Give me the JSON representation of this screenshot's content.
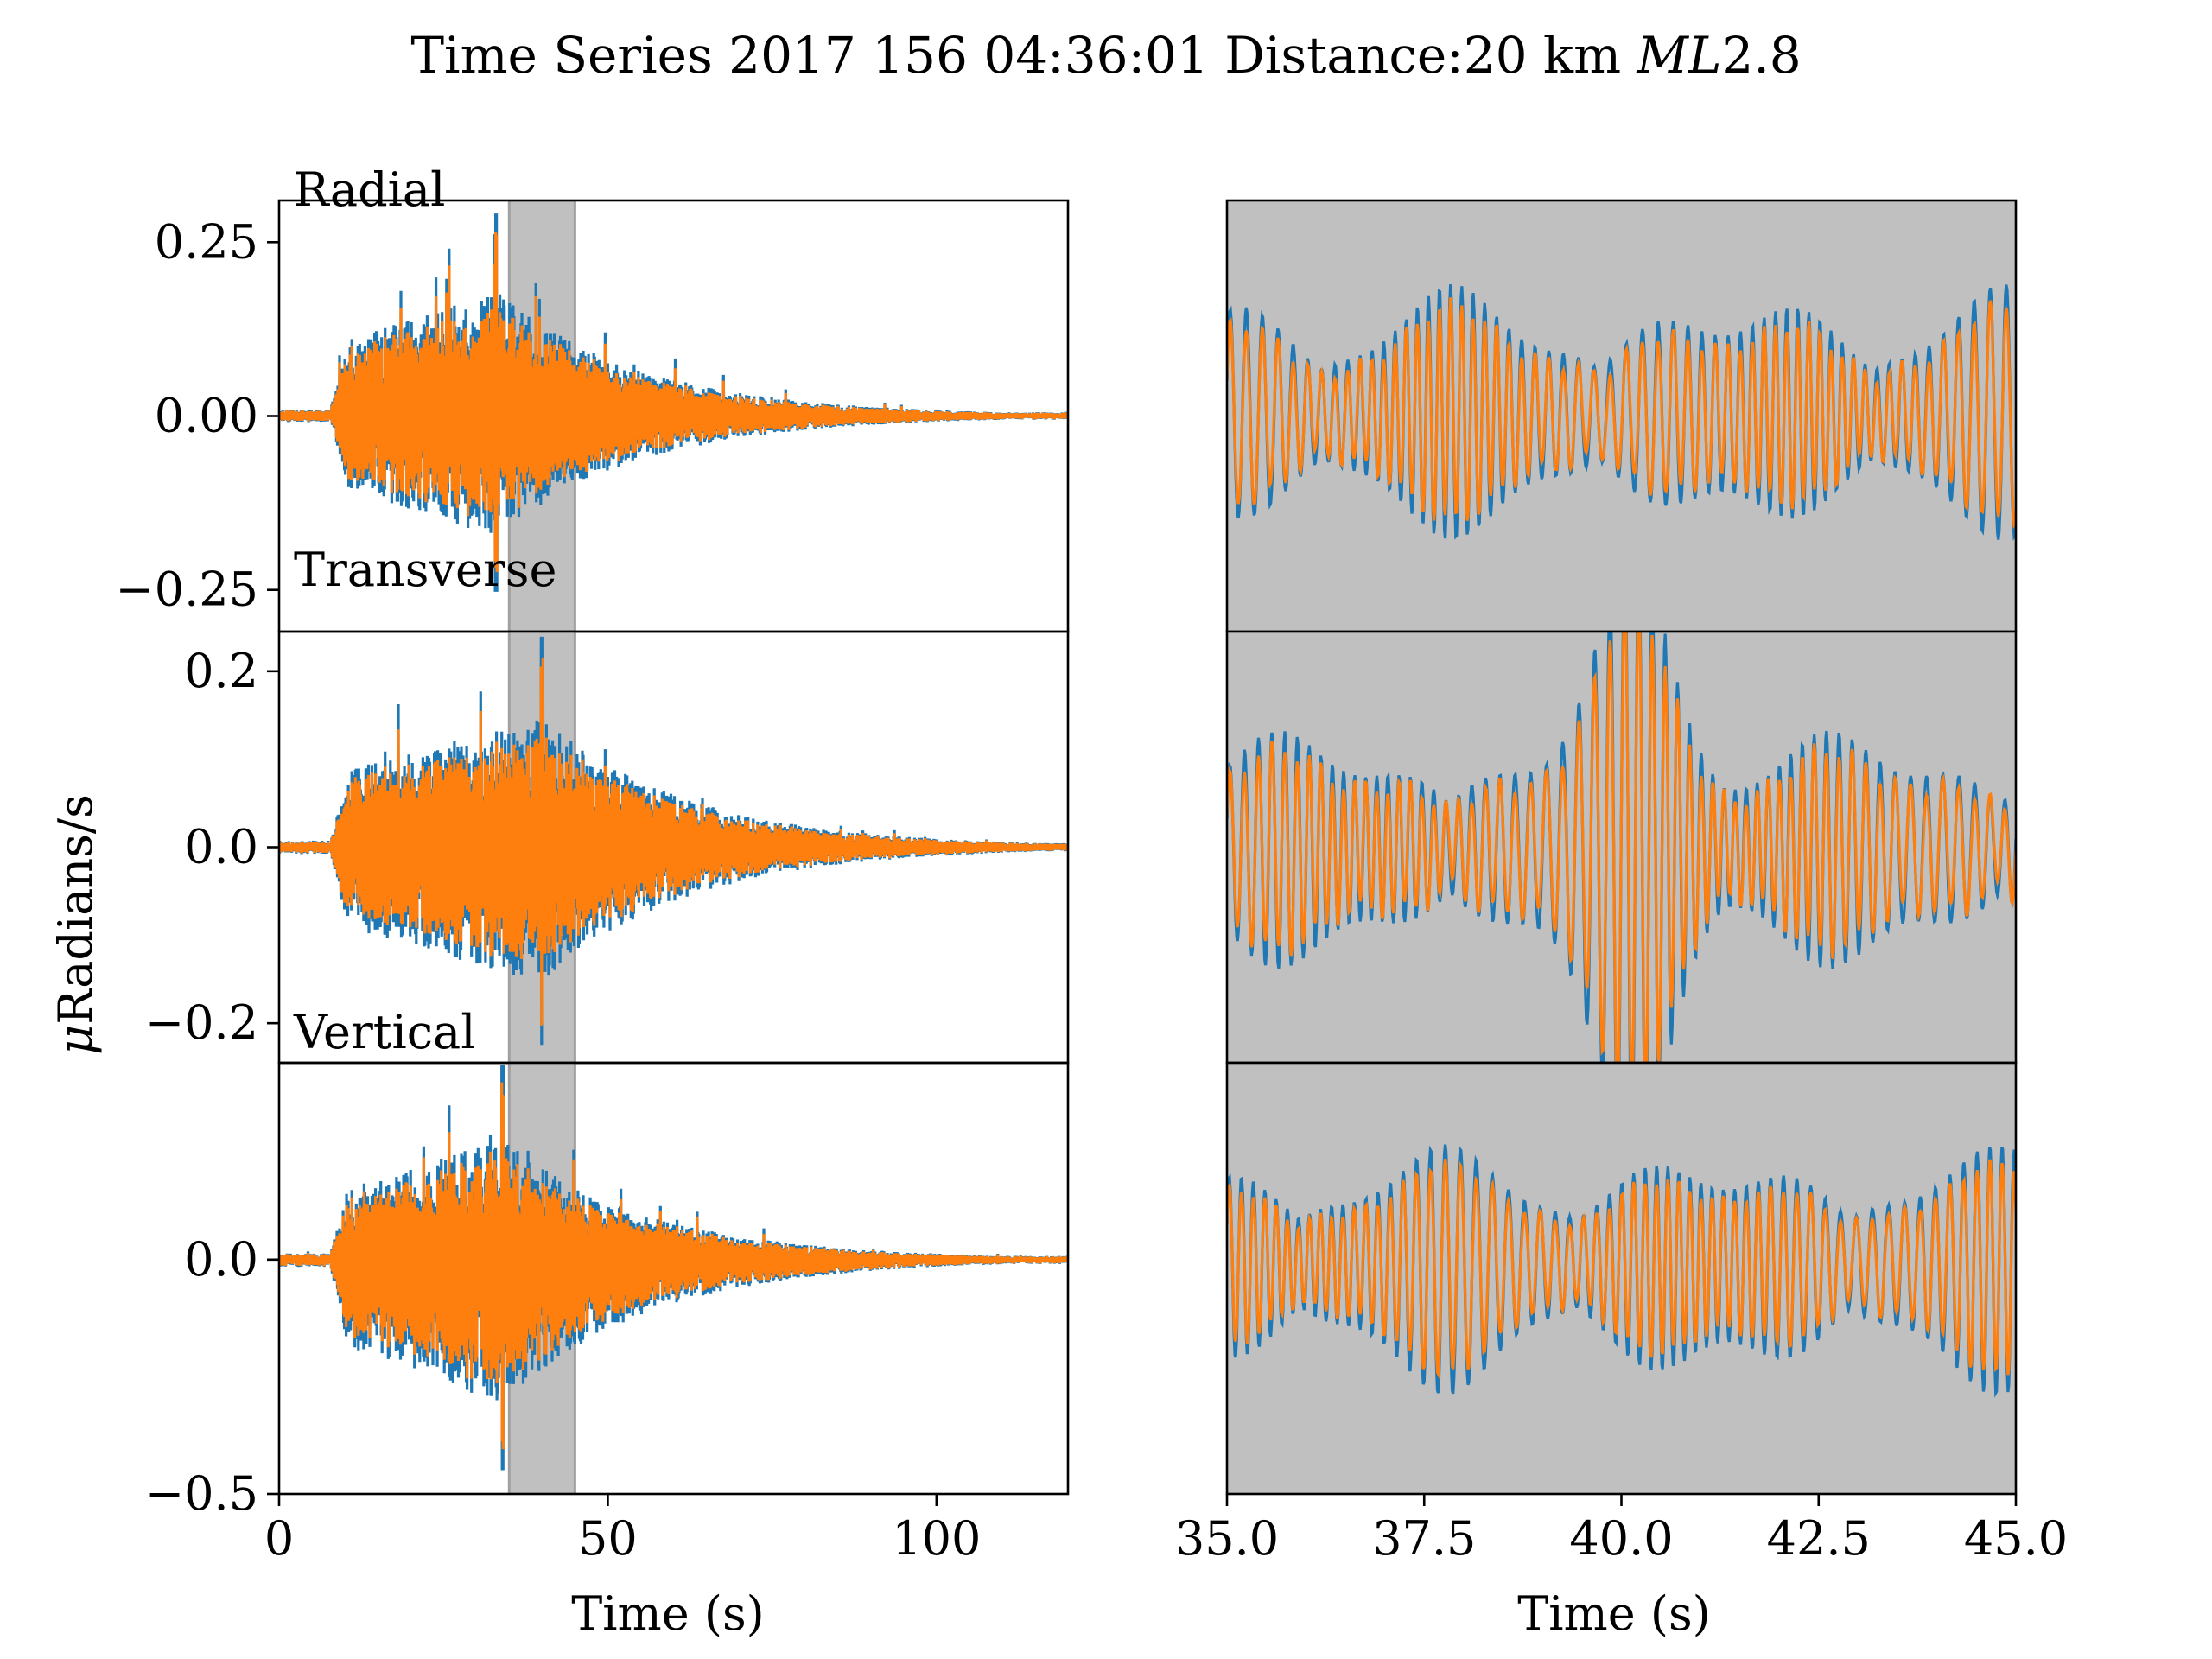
{
  "figure": {
    "title_prefix": "Time Series 2017 156 04:36:01 Distance:20 km ",
    "title_ml": "ML",
    "title_mag": "2.8",
    "ylabel_mu": "μ",
    "ylabel_rest": "Radians/s",
    "colors": {
      "series_1": "#1f77b4",
      "series_2": "#ff7f0e",
      "window_shade": "#c0c0c0"
    }
  },
  "chart_data": [
    {
      "type": "line",
      "panel": "full-radial",
      "annotations": [
        "Radial",
        "Transverse"
      ],
      "xlabel": "",
      "ylabel": "μRadians/s",
      "xlim": [
        0,
        120
      ],
      "ylim": [
        -0.31,
        0.31
      ],
      "yticks": [
        -0.25,
        0.0,
        0.25
      ],
      "ytick_labels": [
        "−0.25",
        "0.00",
        "0.25"
      ],
      "window": [
        35,
        45
      ],
      "envelope": {
        "onset": 7.5,
        "peak_time": 33,
        "peak_amp": 0.28,
        "min_amp": -0.27,
        "decay_end": 120
      },
      "series": [
        {
          "color": "#1f77b4"
        },
        {
          "color": "#ff7f0e"
        }
      ]
    },
    {
      "type": "line",
      "panel": "full-transverse",
      "annotations": [
        "Vertical"
      ],
      "xlim": [
        0,
        120
      ],
      "ylim": [
        -0.245,
        0.245
      ],
      "yticks": [
        -0.2,
        0.0,
        0.2
      ],
      "ytick_labels": [
        "−0.2",
        "0.0",
        "0.2"
      ],
      "window": [
        35,
        45
      ],
      "envelope": {
        "onset": 7.5,
        "peak_time": 40,
        "peak_amp": 0.23,
        "min_amp": -0.24,
        "decay_end": 120
      },
      "series": [
        {
          "color": "#1f77b4"
        },
        {
          "color": "#ff7f0e"
        }
      ]
    },
    {
      "type": "line",
      "panel": "full-vertical",
      "xlabel": "Time (s)",
      "xlim": [
        0,
        120
      ],
      "xticks": [
        0,
        50,
        100
      ],
      "xtick_labels": [
        "0",
        "50",
        "100"
      ],
      "ylim": [
        -0.5,
        0.42
      ],
      "yticks": [
        -0.5,
        0.0
      ],
      "ytick_labels": [
        "−0.5",
        "0.0"
      ],
      "window": [
        35,
        45
      ],
      "envelope": {
        "onset": 7.5,
        "peak_time": 34,
        "peak_amp": 0.4,
        "min_amp": -0.48,
        "decay_end": 120
      },
      "series": [
        {
          "color": "#1f77b4"
        },
        {
          "color": "#ff7f0e"
        }
      ]
    },
    {
      "type": "line",
      "panel": "zoom-radial",
      "xlim": [
        35,
        45
      ],
      "ylim": [
        -0.31,
        0.31
      ],
      "background": "#c0c0c0",
      "amp_range": [
        -0.16,
        0.17
      ],
      "series": [
        {
          "color": "#1f77b4"
        },
        {
          "color": "#ff7f0e"
        }
      ]
    },
    {
      "type": "line",
      "panel": "zoom-transverse",
      "xlim": [
        35,
        45
      ],
      "ylim": [
        -0.245,
        0.245
      ],
      "background": "#c0c0c0",
      "amp_range": [
        -0.24,
        0.23
      ],
      "series": [
        {
          "color": "#1f77b4"
        },
        {
          "color": "#ff7f0e"
        }
      ]
    },
    {
      "type": "line",
      "panel": "zoom-vertical",
      "xlim": [
        35,
        45
      ],
      "xticks": [
        35.0,
        37.5,
        40.0,
        42.5,
        45.0
      ],
      "xtick_labels": [
        "35.0",
        "37.5",
        "40.0",
        "42.5",
        "45.0"
      ],
      "xlabel": "Time (s)",
      "ylim": [
        -0.5,
        0.42
      ],
      "background": "#c0c0c0",
      "amp_range": [
        -0.26,
        0.22
      ],
      "series": [
        {
          "color": "#1f77b4"
        },
        {
          "color": "#ff7f0e"
        }
      ]
    }
  ]
}
